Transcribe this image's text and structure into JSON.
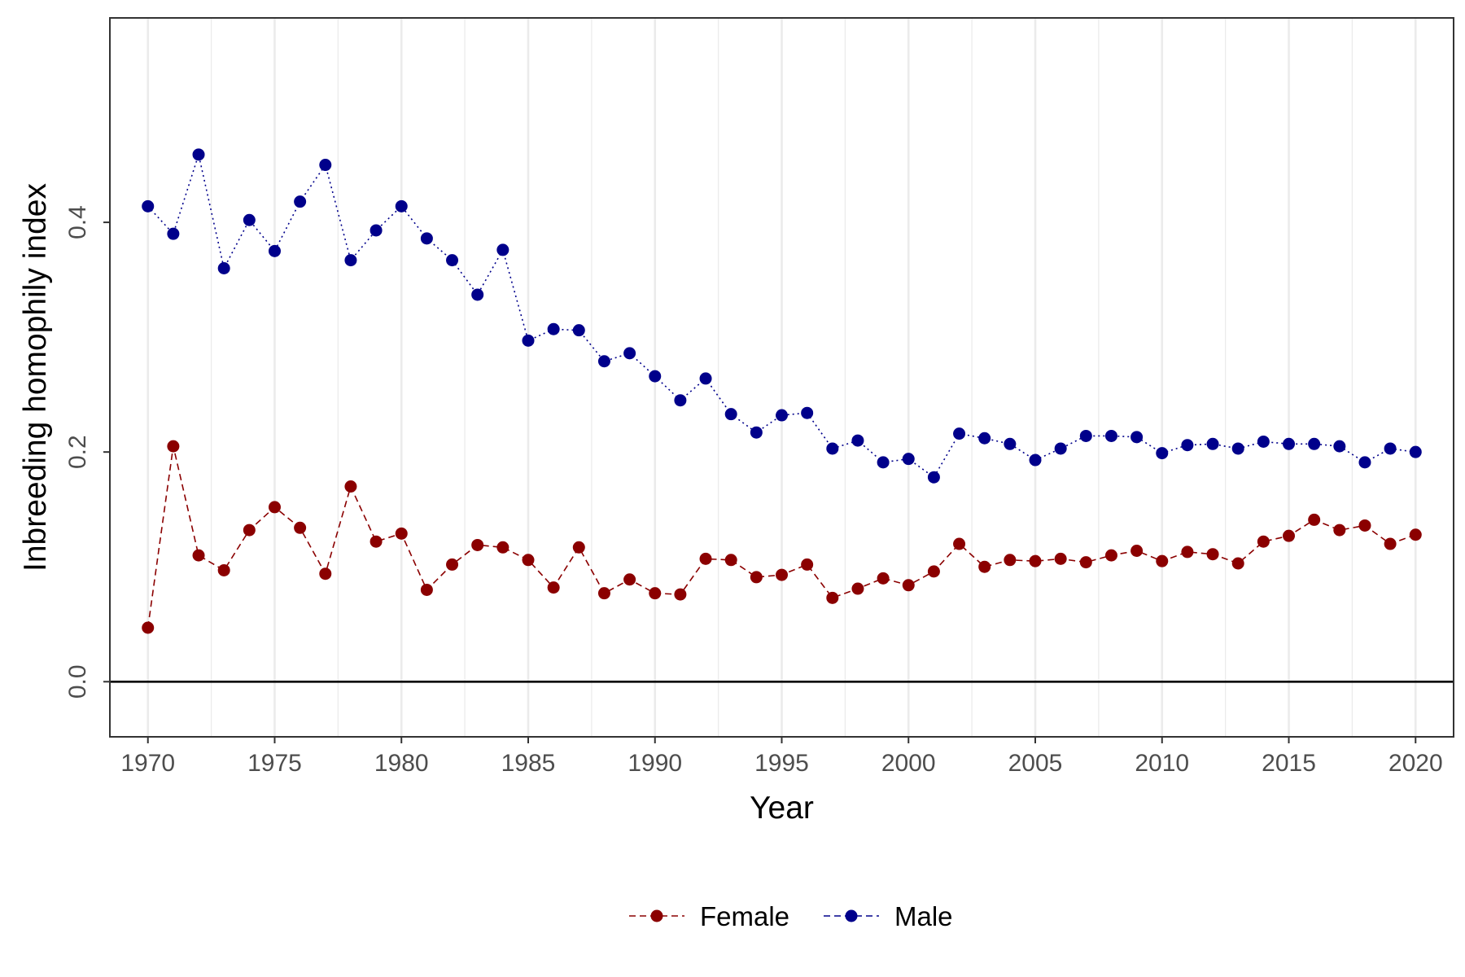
{
  "chart_data": {
    "type": "line",
    "xlabel": "Year",
    "ylabel": "Inbreeding homophily index",
    "xlim": [
      1968.5,
      2021.5
    ],
    "ylim": [
      -0.048,
      0.578
    ],
    "x_ticks": [
      1970,
      1975,
      1980,
      1985,
      1990,
      1995,
      2000,
      2005,
      2010,
      2015,
      2020
    ],
    "x_tick_labels": [
      "1970",
      "1975",
      "1980",
      "1985",
      "1990",
      "1995",
      "2000",
      "2005",
      "2010",
      "2015",
      "2020"
    ],
    "y_ticks": [
      0.0,
      0.2,
      0.4
    ],
    "y_tick_labels": [
      "0.0",
      "0.2",
      "0.4"
    ],
    "reference_line_y": 0.0,
    "grid": "vertical major and minor gridlines",
    "legend_position": "bottom",
    "x": [
      1970,
      1971,
      1972,
      1973,
      1974,
      1975,
      1976,
      1977,
      1978,
      1979,
      1980,
      1981,
      1982,
      1983,
      1984,
      1985,
      1986,
      1987,
      1988,
      1989,
      1990,
      1991,
      1992,
      1993,
      1994,
      1995,
      1996,
      1997,
      1998,
      1999,
      2000,
      2001,
      2002,
      2003,
      2004,
      2005,
      2006,
      2007,
      2008,
      2009,
      2010,
      2011,
      2012,
      2013,
      2014,
      2015,
      2016,
      2017,
      2018,
      2019,
      2020
    ],
    "series": [
      {
        "name": "Female",
        "color": "#8b0000",
        "line_style": "dashed",
        "values": [
          0.047,
          0.205,
          0.11,
          0.097,
          0.132,
          0.152,
          0.134,
          0.094,
          0.17,
          0.122,
          0.129,
          0.08,
          0.102,
          0.119,
          0.117,
          0.106,
          0.082,
          0.117,
          0.077,
          0.089,
          0.077,
          0.076,
          0.107,
          0.106,
          0.091,
          0.093,
          0.102,
          0.073,
          0.081,
          0.09,
          0.084,
          0.096,
          0.12,
          0.1,
          0.106,
          0.105,
          0.107,
          0.104,
          0.11,
          0.114,
          0.105,
          0.113,
          0.111,
          0.103,
          0.122,
          0.127,
          0.141,
          0.132,
          0.136,
          0.12,
          0.128
        ]
      },
      {
        "name": "Male",
        "color": "#00008b",
        "line_style": "dotted",
        "values": [
          0.414,
          0.39,
          0.459,
          0.36,
          0.402,
          0.375,
          0.418,
          0.45,
          0.367,
          0.393,
          0.414,
          0.386,
          0.367,
          0.337,
          0.376,
          0.297,
          0.307,
          0.306,
          0.279,
          0.286,
          0.266,
          0.245,
          0.264,
          0.233,
          0.217,
          0.232,
          0.234,
          0.203,
          0.21,
          0.191,
          0.194,
          0.178,
          0.216,
          0.212,
          0.207,
          0.193,
          0.203,
          0.214,
          0.214,
          0.213,
          0.199,
          0.206,
          0.207,
          0.203,
          0.209,
          0.207,
          0.207,
          0.205,
          0.191,
          0.203,
          0.2
        ]
      }
    ]
  }
}
